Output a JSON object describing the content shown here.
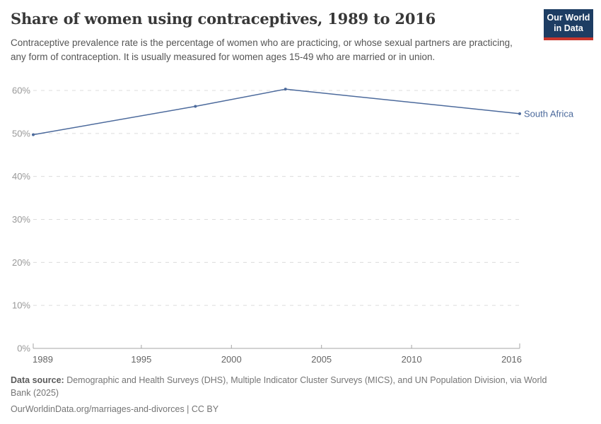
{
  "header": {
    "title": "Share of women using contraceptives, 1989 to 2016",
    "subtitle": "Contraceptive prevalence rate is the percentage of women who are practicing, or whose sexual partners are practicing, any form of contraception. It is usually measured for women ages 15-49 who are married or in union.",
    "logo": {
      "line1": "Our World",
      "line2": "in Data",
      "background_color": "#1d3d63",
      "accent_color": "#c7362d"
    }
  },
  "chart_data": {
    "type": "line",
    "title": "Share of women using contraceptives, 1989 to 2016",
    "series": [
      {
        "name": "South Africa",
        "color": "#4C6A9C",
        "x": [
          1989,
          1998,
          2003,
          2016
        ],
        "values": [
          49.7,
          56.3,
          60.3,
          54.6
        ]
      }
    ],
    "xlim": [
      1989,
      2016
    ],
    "ylim": [
      0,
      60
    ],
    "xticks": [
      1989,
      1995,
      2000,
      2005,
      2010,
      2016
    ],
    "yticks": [
      0,
      10,
      20,
      30,
      40,
      50,
      60
    ],
    "ytick_suffix": "%",
    "grid": "horizontal-dashed",
    "legend_position": "end-of-line-label",
    "colors": {
      "gridline": "#dcdcdc",
      "axis": "#a5a5a5",
      "ytick_label": "#999999",
      "xtick_label": "#666666"
    }
  },
  "footer": {
    "source_label": "Data source:",
    "source_text": " Demographic and Health Surveys (DHS), Multiple Indicator Cluster Surveys (MICS), and UN Population Division, via World Bank (2025)",
    "link_line": "OurWorldinData.org/marriages-and-divorces | CC BY"
  }
}
